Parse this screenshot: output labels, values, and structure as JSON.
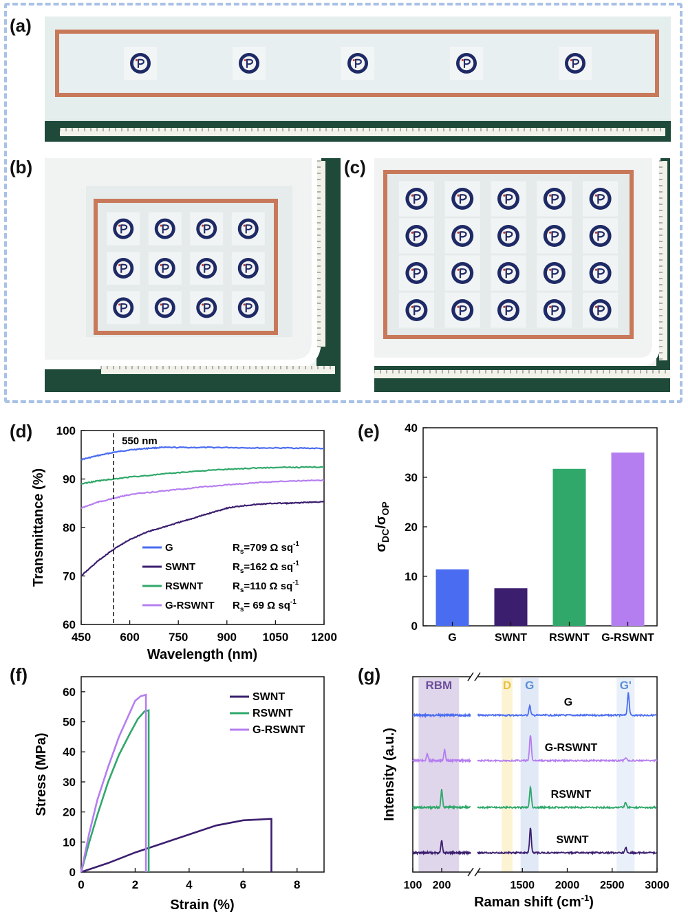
{
  "panels": {
    "a": "(a)",
    "b": "(b)",
    "c": "(c)",
    "d": "(d)",
    "e": "(e)",
    "f": "(f)",
    "g": "(g)"
  },
  "colors": {
    "G": "#4a6cf0",
    "SWNT": "#3b1e6e",
    "RSWNT": "#2fa86a",
    "G_RSWNT": "#b57ef0",
    "copper": "#c8795a",
    "frame": "#a9c1e6"
  },
  "photos": {
    "a": {
      "logo_rows": 1,
      "logo_cols": 5
    },
    "b": {
      "logo_rows": 3,
      "logo_cols": 4
    },
    "c": {
      "logo_rows": 4,
      "logo_cols": 5
    }
  },
  "chart_data": [
    {
      "id": "d",
      "type": "line",
      "xlabel": "Wavelength (nm)",
      "ylabel": "Transmittance (%)",
      "xlim": [
        450,
        1200
      ],
      "ylim": [
        60,
        100
      ],
      "xticks": [
        450,
        600,
        750,
        900,
        1050,
        1200
      ],
      "yticks": [
        60,
        70,
        80,
        90,
        100
      ],
      "annotation": "550 nm",
      "marker_x": 550,
      "series": [
        {
          "name": "G",
          "rs": "709",
          "x": [
            450,
            500,
            550,
            600,
            650,
            700,
            800,
            900,
            1000,
            1100,
            1200
          ],
          "y": [
            94.0,
            94.8,
            95.5,
            96.0,
            96.3,
            96.5,
            96.5,
            96.5,
            96.4,
            96.4,
            96.3
          ]
        },
        {
          "name": "SWNT",
          "rs": "162",
          "x": [
            450,
            500,
            550,
            600,
            650,
            700,
            750,
            800,
            850,
            900,
            950,
            1000,
            1050,
            1100,
            1150,
            1200
          ],
          "y": [
            70.0,
            73.0,
            75.5,
            77.5,
            79.0,
            80.0,
            81.0,
            82.0,
            83.0,
            84.0,
            84.5,
            84.8,
            85.0,
            85.0,
            85.2,
            85.3
          ]
        },
        {
          "name": "RSWNT",
          "rs": "110",
          "x": [
            450,
            500,
            550,
            600,
            700,
            800,
            900,
            1000,
            1100,
            1200
          ],
          "y": [
            89.0,
            89.6,
            90.0,
            90.4,
            91.0,
            91.6,
            92.0,
            92.3,
            92.4,
            92.5
          ]
        },
        {
          "name": "G-RSWNT",
          "rs": " 69",
          "x": [
            450,
            500,
            550,
            600,
            700,
            800,
            900,
            1000,
            1100,
            1200
          ],
          "y": [
            84.0,
            85.2,
            86.0,
            86.8,
            87.5,
            88.2,
            88.8,
            89.3,
            89.6,
            89.7
          ]
        }
      ],
      "rs_prefix": "R",
      "rs_sub": "s",
      "rs_unit": " Ω sq",
      "rs_sup": "-1"
    },
    {
      "id": "e",
      "type": "bar",
      "categories": [
        "G",
        "SWNT",
        "RSWNT",
        "G-RSWNT"
      ],
      "values": [
        11.4,
        7.6,
        31.7,
        35.0
      ],
      "ylim": [
        0,
        40
      ],
      "yticks": [
        0,
        10,
        20,
        30,
        40
      ],
      "ylabel_parts": {
        "sigma": "σ",
        "sub1": "DC",
        "slash": "/",
        "sub2": "OP"
      }
    },
    {
      "id": "f",
      "type": "line",
      "xlabel": "Strain (%)",
      "ylabel": "Stress (MPa)",
      "xlim": [
        0,
        9
      ],
      "ylim": [
        0,
        65
      ],
      "xticks": [
        0,
        2,
        4,
        6,
        8
      ],
      "yticks": [
        0,
        10,
        20,
        30,
        40,
        50,
        60
      ],
      "series": [
        {
          "name": "SWNT",
          "x": [
            0,
            1,
            2,
            3,
            4,
            5,
            6,
            7.0,
            7.05,
            7.05
          ],
          "y": [
            0,
            3.0,
            6.5,
            9.5,
            12.5,
            15.5,
            17.2,
            17.7,
            17.7,
            0
          ]
        },
        {
          "name": "RSWNT",
          "x": [
            0,
            0.3,
            0.6,
            1.0,
            1.4,
            1.8,
            2.1,
            2.35,
            2.5,
            2.5
          ],
          "y": [
            0,
            10,
            19,
            30,
            39,
            46,
            51,
            53.5,
            53.8,
            0
          ]
        },
        {
          "name": "G-RSWNT",
          "x": [
            0,
            0.3,
            0.6,
            1.0,
            1.4,
            1.8,
            2.0,
            2.2,
            2.4,
            2.4
          ],
          "y": [
            0,
            13,
            24,
            35,
            45,
            53,
            57,
            58.5,
            59,
            0
          ]
        }
      ]
    },
    {
      "id": "g",
      "type": "line",
      "xlabel": "Raman shift (cm-1)",
      "xlabel_main": "Raman shift (cm",
      "xlabel_sup": "-1",
      "xlabel_end": ")",
      "ylabel": "Intensity (a.u.)",
      "xticks": [
        100,
        200,
        1500,
        2000,
        2500,
        3000
      ],
      "bands": [
        {
          "label": "RBM",
          "from": 120,
          "to": 260,
          "color": "#d8cce6",
          "text_color": "#6c4f9a"
        },
        {
          "label": "D",
          "from": 1270,
          "to": 1390,
          "color": "#fbf0c8",
          "text_color": "#e8c040"
        },
        {
          "label": "G",
          "from": 1480,
          "to": 1680,
          "color": "#d9e3f5",
          "text_color": "#5b8fd6"
        },
        {
          "label": "G'",
          "from": 2550,
          "to": 2750,
          "color": "#e4ecf7",
          "text_color": "#5b8fd6"
        }
      ],
      "series": [
        {
          "name": "G",
          "peaks": [
            [
              1582,
              14
            ],
            [
              2680,
              33
            ]
          ],
          "rbm": []
        },
        {
          "name": "G-RSWNT",
          "peaks": [
            [
              1590,
              38
            ],
            [
              2650,
              5
            ]
          ],
          "rbm": [
            [
              150,
              10
            ],
            [
              210,
              16
            ]
          ]
        },
        {
          "name": "RSWNT",
          "peaks": [
            [
              1590,
              30
            ],
            [
              2650,
              8
            ]
          ],
          "rbm": [
            [
              200,
              26
            ]
          ]
        },
        {
          "name": "SWNT",
          "peaks": [
            [
              1590,
              36
            ],
            [
              2650,
              8
            ]
          ],
          "rbm": [
            [
              200,
              18
            ]
          ]
        }
      ]
    }
  ]
}
